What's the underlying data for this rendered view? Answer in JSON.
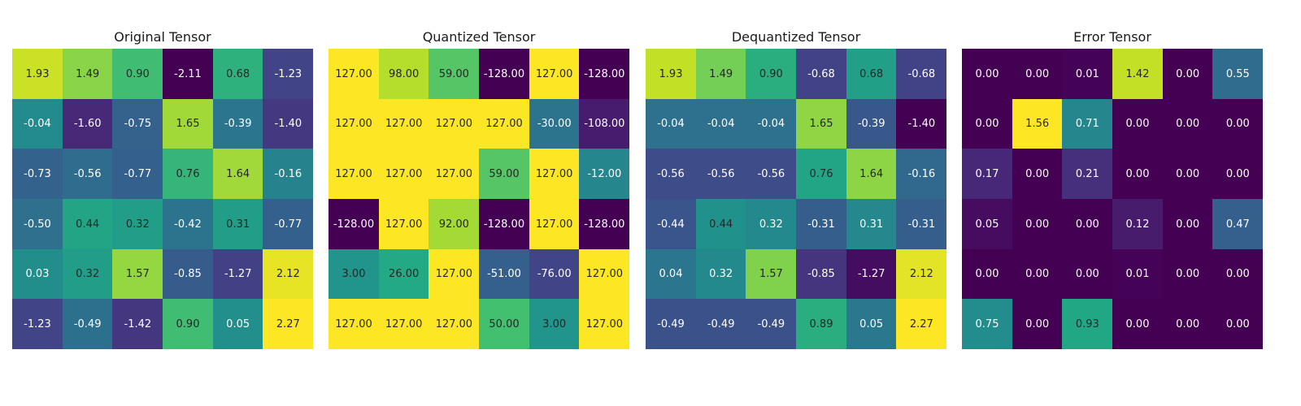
{
  "chart_data": [
    {
      "type": "heatmap",
      "title": "Original Tensor",
      "colormap": "viridis",
      "axes": "off",
      "values": [
        [
          1.93,
          1.49,
          0.9,
          -2.11,
          0.68,
          -1.23
        ],
        [
          -0.04,
          -1.6,
          -0.75,
          1.65,
          -0.39,
          -1.4
        ],
        [
          -0.73,
          -0.56,
          -0.77,
          0.76,
          1.64,
          -0.16
        ],
        [
          -0.5,
          0.44,
          0.32,
          -0.42,
          0.31,
          -0.77
        ],
        [
          0.03,
          0.32,
          1.57,
          -0.85,
          -1.27,
          2.12
        ],
        [
          -1.23,
          -0.49,
          -1.42,
          0.9,
          0.05,
          2.27
        ]
      ],
      "labels": [
        [
          "1.93",
          "1.49",
          "0.90",
          "-2.11",
          "0.68",
          "-1.23"
        ],
        [
          "-0.04",
          "-1.60",
          "-0.75",
          "1.65",
          "-0.39",
          "-1.40"
        ],
        [
          "-0.73",
          "-0.56",
          "-0.77",
          "0.76",
          "1.64",
          "-0.16"
        ],
        [
          "-0.50",
          "0.44",
          "0.32",
          "-0.42",
          "0.31",
          "-0.77"
        ],
        [
          "0.03",
          "0.32",
          "1.57",
          "-0.85",
          "-1.27",
          "2.12"
        ],
        [
          "-1.23",
          "-0.49",
          "-1.42",
          "0.90",
          "0.05",
          "2.27"
        ]
      ],
      "vmin": -2.11,
      "vmax": 2.27
    },
    {
      "type": "heatmap",
      "title": "Quantized Tensor",
      "colormap": "viridis",
      "axes": "off",
      "values": [
        [
          127,
          98,
          59,
          -128,
          127,
          -128
        ],
        [
          127,
          127,
          127,
          127,
          -30,
          -108
        ],
        [
          127,
          127,
          127,
          59,
          127,
          -12
        ],
        [
          -128,
          127,
          92,
          -128,
          127,
          -128
        ],
        [
          3,
          26,
          127,
          -51,
          -76,
          127
        ],
        [
          127,
          127,
          127,
          50,
          3,
          127
        ]
      ],
      "labels": [
        [
          "127.00",
          "98.00",
          "59.00",
          "-128.00",
          "127.00",
          "-128.00"
        ],
        [
          "127.00",
          "127.00",
          "127.00",
          "127.00",
          "-30.00",
          "-108.00"
        ],
        [
          "127.00",
          "127.00",
          "127.00",
          "59.00",
          "127.00",
          "-12.00"
        ],
        [
          "-128.00",
          "127.00",
          "92.00",
          "-128.00",
          "127.00",
          "-128.00"
        ],
        [
          "3.00",
          "26.00",
          "127.00",
          "-51.00",
          "-76.00",
          "127.00"
        ],
        [
          "127.00",
          "127.00",
          "127.00",
          "50.00",
          "3.00",
          "127.00"
        ]
      ],
      "vmin": -128,
      "vmax": 127
    },
    {
      "type": "heatmap",
      "title": "Dequantized Tensor",
      "colormap": "viridis",
      "axes": "off",
      "values": [
        [
          1.93,
          1.49,
          0.9,
          -0.68,
          0.68,
          -0.68
        ],
        [
          -0.04,
          -0.04,
          -0.04,
          1.65,
          -0.39,
          -1.4
        ],
        [
          -0.56,
          -0.56,
          -0.56,
          0.76,
          1.64,
          -0.16
        ],
        [
          -0.44,
          0.44,
          0.32,
          -0.31,
          0.31,
          -0.31
        ],
        [
          0.04,
          0.32,
          1.57,
          -0.85,
          -1.27,
          2.12
        ],
        [
          -0.49,
          -0.49,
          -0.49,
          0.89,
          0.05,
          2.27
        ]
      ],
      "labels": [
        [
          "1.93",
          "1.49",
          "0.90",
          "-0.68",
          "0.68",
          "-0.68"
        ],
        [
          "-0.04",
          "-0.04",
          "-0.04",
          "1.65",
          "-0.39",
          "-1.40"
        ],
        [
          "-0.56",
          "-0.56",
          "-0.56",
          "0.76",
          "1.64",
          "-0.16"
        ],
        [
          "-0.44",
          "0.44",
          "0.32",
          "-0.31",
          "0.31",
          "-0.31"
        ],
        [
          "0.04",
          "0.32",
          "1.57",
          "-0.85",
          "-1.27",
          "2.12"
        ],
        [
          "-0.49",
          "-0.49",
          "-0.49",
          "0.89",
          "0.05",
          "2.27"
        ]
      ],
      "vmin": -1.4,
      "vmax": 2.27
    },
    {
      "type": "heatmap",
      "title": "Error Tensor",
      "colormap": "viridis",
      "axes": "off",
      "values": [
        [
          0.0,
          0.0,
          0.01,
          1.42,
          0.0,
          0.55
        ],
        [
          0.0,
          1.56,
          0.71,
          0.0,
          0.0,
          0.0
        ],
        [
          0.17,
          0.0,
          0.21,
          0.0,
          0.0,
          0.0
        ],
        [
          0.05,
          0.0,
          0.0,
          0.12,
          0.0,
          0.47
        ],
        [
          0.0,
          0.0,
          0.0,
          0.01,
          0.0,
          0.0
        ],
        [
          0.75,
          0.0,
          0.93,
          0.0,
          0.0,
          0.0
        ]
      ],
      "labels": [
        [
          "0.00",
          "0.00",
          "0.01",
          "1.42",
          "0.00",
          "0.55"
        ],
        [
          "0.00",
          "1.56",
          "0.71",
          "0.00",
          "0.00",
          "0.00"
        ],
        [
          "0.17",
          "0.00",
          "0.21",
          "0.00",
          "0.00",
          "0.00"
        ],
        [
          "0.05",
          "0.00",
          "0.00",
          "0.12",
          "0.00",
          "0.47"
        ],
        [
          "0.00",
          "0.00",
          "0.00",
          "0.01",
          "0.00",
          "0.00"
        ],
        [
          "0.75",
          "0.00",
          "0.93",
          "0.00",
          "0.00",
          "0.00"
        ]
      ],
      "vmin": 0.0,
      "vmax": 1.56
    }
  ]
}
